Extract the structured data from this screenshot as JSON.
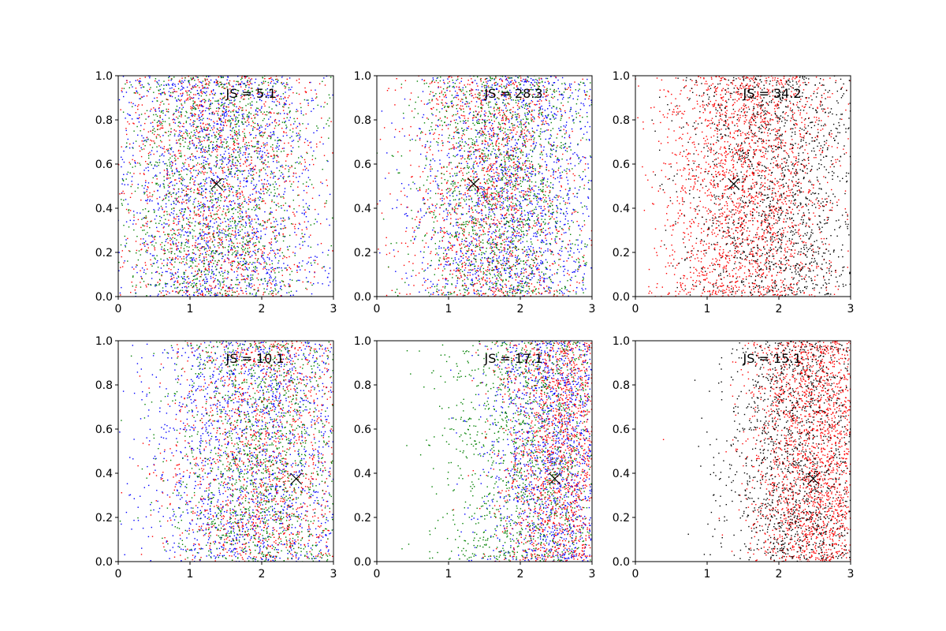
{
  "chart_data": [
    {
      "type": "scatter",
      "annotation": "JS = 5.1",
      "xlim": [
        0,
        3
      ],
      "ylim": [
        0,
        1
      ],
      "xticks": [
        "0",
        "1",
        "2",
        "3"
      ],
      "yticks": [
        "0.0",
        "0.2",
        "0.4",
        "0.6",
        "0.8",
        "1.0"
      ],
      "marker": {
        "x": 1.37,
        "y": 0.51
      },
      "series": [
        {
          "color": "#0000ff",
          "count": 1700,
          "x_center": 1.4,
          "x_spread": 0.75
        },
        {
          "color": "#ff0000",
          "count": 1500,
          "x_center": 1.4,
          "x_spread": 0.72
        },
        {
          "color": "#008000",
          "count": 1500,
          "x_center": 1.35,
          "x_spread": 0.7
        }
      ]
    },
    {
      "type": "scatter",
      "annotation": "JS = 28.3",
      "xlim": [
        0,
        3
      ],
      "ylim": [
        0,
        1
      ],
      "xticks": [
        "0",
        "1",
        "2",
        "3"
      ],
      "yticks": [
        "0.0",
        "0.2",
        "0.4",
        "0.6",
        "0.8",
        "1.0"
      ],
      "marker": {
        "x": 1.35,
        "y": 0.51
      },
      "series": [
        {
          "color": "#0000ff",
          "count": 1700,
          "x_center": 1.9,
          "x_spread": 0.7
        },
        {
          "color": "#ff0000",
          "count": 1500,
          "x_center": 1.6,
          "x_spread": 0.62
        },
        {
          "color": "#008000",
          "count": 1500,
          "x_center": 1.75,
          "x_spread": 0.6
        }
      ]
    },
    {
      "type": "scatter",
      "annotation": "JS = 34.2",
      "xlim": [
        0,
        3
      ],
      "ylim": [
        0,
        1
      ],
      "xticks": [
        "0",
        "1",
        "2",
        "3"
      ],
      "yticks": [
        "0.0",
        "0.2",
        "0.4",
        "0.6",
        "0.8",
        "1.0"
      ],
      "marker": {
        "x": 1.37,
        "y": 0.51
      },
      "series": [
        {
          "color": "#ff0000",
          "count": 2200,
          "x_center": 1.55,
          "x_spread": 0.6
        },
        {
          "color": "#000000",
          "count": 1600,
          "x_center": 2.0,
          "x_spread": 0.65
        }
      ]
    },
    {
      "type": "scatter",
      "annotation": "JS = 10.1",
      "xlim": [
        0,
        3
      ],
      "ylim": [
        0,
        1
      ],
      "xticks": [
        "0",
        "1",
        "2",
        "3"
      ],
      "yticks": [
        "0.0",
        "0.2",
        "0.4",
        "0.6",
        "0.8",
        "1.0"
      ],
      "marker": {
        "x": 2.48,
        "y": 0.375
      },
      "series": [
        {
          "color": "#0000ff",
          "count": 1700,
          "x_center": 1.9,
          "x_spread": 0.75
        },
        {
          "color": "#ff0000",
          "count": 1400,
          "x_center": 2.0,
          "x_spread": 0.65
        },
        {
          "color": "#008000",
          "count": 1400,
          "x_center": 2.0,
          "x_spread": 0.65
        }
      ]
    },
    {
      "type": "scatter",
      "annotation": "JS = 17.1",
      "xlim": [
        0,
        3
      ],
      "ylim": [
        0,
        1
      ],
      "xticks": [
        "0",
        "1",
        "2",
        "3"
      ],
      "yticks": [
        "0.0",
        "0.2",
        "0.4",
        "0.6",
        "0.8",
        "1.0"
      ],
      "marker": {
        "x": 2.48,
        "y": 0.375
      },
      "series": [
        {
          "color": "#0000ff",
          "count": 1600,
          "x_center": 2.5,
          "x_spread": 0.5
        },
        {
          "color": "#ff0000",
          "count": 1700,
          "x_center": 2.6,
          "x_spread": 0.45
        },
        {
          "color": "#008000",
          "count": 1300,
          "x_center": 2.1,
          "x_spread": 0.6
        }
      ]
    },
    {
      "type": "scatter",
      "annotation": "JS = 15.1",
      "xlim": [
        0,
        3
      ],
      "ylim": [
        0,
        1
      ],
      "xticks": [
        "0",
        "1",
        "2",
        "3"
      ],
      "yticks": [
        "0.0",
        "0.2",
        "0.4",
        "0.6",
        "0.8",
        "1.0"
      ],
      "marker": {
        "x": 2.48,
        "y": 0.375
      },
      "series": [
        {
          "color": "#ff0000",
          "count": 2300,
          "x_center": 2.55,
          "x_spread": 0.45
        },
        {
          "color": "#000000",
          "count": 1500,
          "x_center": 2.25,
          "x_spread": 0.5
        }
      ]
    }
  ]
}
